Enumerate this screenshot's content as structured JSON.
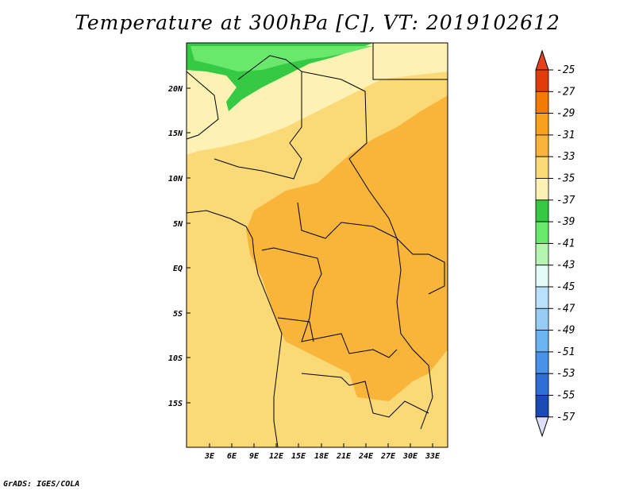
{
  "title": "Temperature at 300hPa [C], VT: 2019102612",
  "credit": "GrADS: IGES/COLA",
  "x_ticks": [
    "3E",
    "6E",
    "9E",
    "12E",
    "15E",
    "18E",
    "21E",
    "24E",
    "27E",
    "30E",
    "33E"
  ],
  "y_ticks": [
    "20N",
    "15N",
    "10N",
    "5N",
    "EQ",
    "5S",
    "10S",
    "15S"
  ],
  "colorbar": {
    "levels": [
      "-25",
      "-27",
      "-29",
      "-31",
      "-33",
      "-35",
      "-37",
      "-39",
      "-41",
      "-43",
      "-45",
      "-47",
      "-49",
      "-51",
      "-53",
      "-55",
      "-57"
    ],
    "colors": [
      "#e23c0c",
      "#f47a06",
      "#f6a21d",
      "#f9b53a",
      "#fbd977",
      "#fdf1b4",
      "#36c944",
      "#6ae86e",
      "#b5f4b3",
      "#e2fbf6",
      "#b9e1fb",
      "#97cdf4",
      "#6db3ef",
      "#4a91e8",
      "#2f6ed8",
      "#1a4ab5",
      "#0a1a7a"
    ],
    "top_color": "#e8401c",
    "bottom_color": "#dce0f8"
  }
}
